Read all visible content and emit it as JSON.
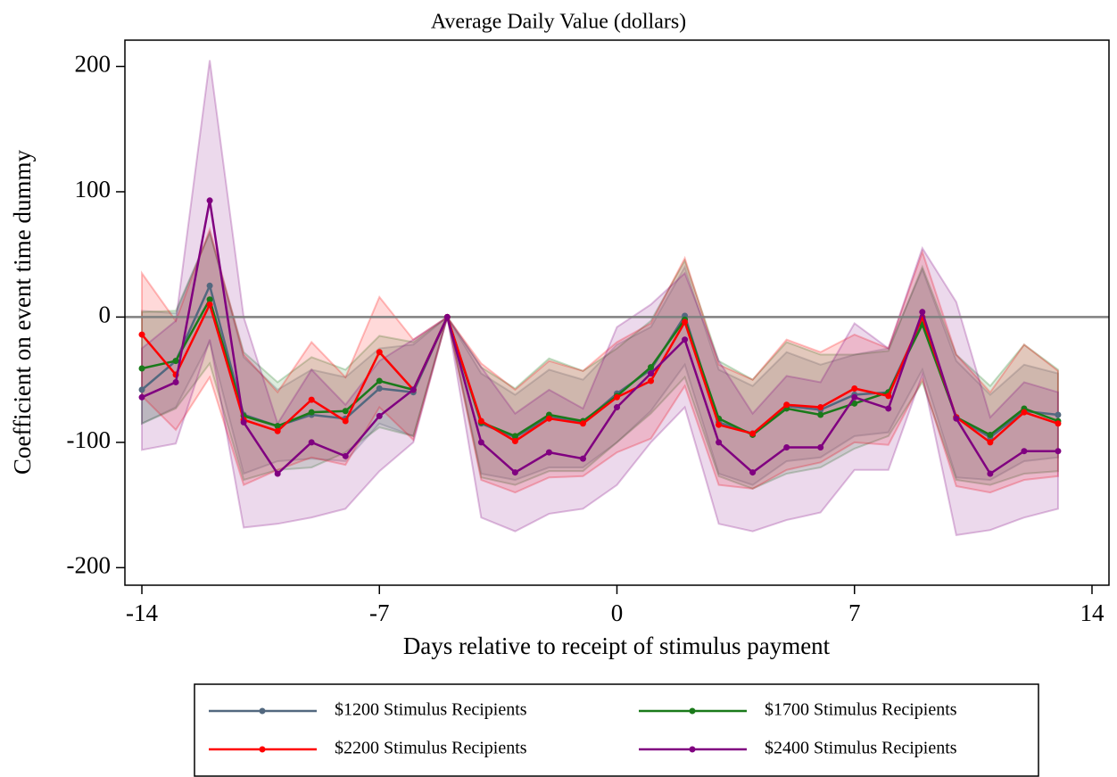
{
  "chart_data": {
    "type": "line",
    "title": "Average Daily Value (dollars)",
    "x_label": "Days relative to receipt of stimulus payment",
    "y_label": "Coefficient on event time dummy",
    "x": [
      -14,
      -13,
      -12,
      -11,
      -10,
      -9,
      -8,
      -7,
      -6,
      -5,
      -4,
      -3,
      -2,
      -1,
      0,
      1,
      2,
      3,
      4,
      5,
      6,
      7,
      8,
      9,
      10,
      11,
      12,
      13
    ],
    "xlim": [
      -14.5,
      14.5
    ],
    "xticks": [
      -14,
      -7,
      0,
      7,
      14
    ],
    "ylim": [
      -214,
      221
    ],
    "yticks": [
      -200,
      -100,
      0,
      100,
      200
    ],
    "hline": 0,
    "series": [
      {
        "name": "$1200 Stimulus Recipients",
        "color": "#52687f",
        "values": [
          -58,
          -35,
          25,
          -78,
          -87,
          -78,
          -81,
          -57,
          -60,
          0,
          -85,
          -96,
          -80,
          -84,
          -61,
          -42,
          1,
          -84,
          -93,
          -71,
          -74,
          -62,
          -60,
          -2,
          -80,
          -96,
          -75,
          -78
        ],
        "upper": [
          5,
          3,
          68,
          -32,
          -58,
          -42,
          -48,
          -25,
          -22,
          0,
          -45,
          -62,
          -42,
          -50,
          -22,
          -8,
          40,
          -42,
          -55,
          -28,
          -38,
          -30,
          -25,
          38,
          -35,
          -62,
          -38,
          -45
        ],
        "lower": [
          -85,
          -72,
          -20,
          -125,
          -115,
          -113,
          -115,
          -85,
          -95,
          0,
          -125,
          -130,
          -120,
          -120,
          -100,
          -75,
          -38,
          -125,
          -134,
          -115,
          -112,
          -95,
          -92,
          -42,
          -128,
          -130,
          -115,
          -112
        ]
      },
      {
        "name": "$1700 Stimulus Recipients",
        "color": "#1a7a1a",
        "values": [
          -41,
          -35,
          14,
          -79,
          -87,
          -76,
          -75,
          -51,
          -58,
          0,
          -84,
          -95,
          -78,
          -83,
          -63,
          -40,
          -2,
          -81,
          -94,
          -73,
          -78,
          -69,
          -60,
          -6,
          -80,
          -94,
          -73,
          -83
        ],
        "upper": [
          4,
          5,
          67,
          -28,
          -52,
          -32,
          -42,
          -15,
          -20,
          0,
          -40,
          -57,
          -33,
          -43,
          -25,
          -3,
          45,
          -35,
          -50,
          -20,
          -30,
          -30,
          -27,
          40,
          -30,
          -55,
          -22,
          -42
        ],
        "lower": [
          -85,
          -73,
          -37,
          -130,
          -122,
          -120,
          -108,
          -88,
          -95,
          0,
          -128,
          -134,
          -123,
          -123,
          -100,
          -77,
          -48,
          -127,
          -137,
          -125,
          -120,
          -105,
          -95,
          -52,
          -130,
          -134,
          -125,
          -123
        ]
      },
      {
        "name": "$2200 Stimulus Recipients",
        "color": "#ff0000",
        "values": [
          -14,
          -46,
          10,
          -82,
          -91,
          -66,
          -83,
          -28,
          -58,
          0,
          -83,
          -99,
          -81,
          -85,
          -64,
          -51,
          -4,
          -86,
          -93,
          -70,
          -72,
          -57,
          -63,
          0,
          -80,
          -100,
          -76,
          -85
        ],
        "upper": [
          35,
          -3,
          70,
          -30,
          -60,
          -20,
          -48,
          16,
          -18,
          0,
          -37,
          -58,
          -35,
          -43,
          -20,
          -5,
          47,
          -38,
          -50,
          -18,
          -28,
          -14,
          -25,
          52,
          -30,
          -60,
          -22,
          -43
        ],
        "lower": [
          -63,
          -90,
          -48,
          -134,
          -122,
          -112,
          -118,
          -72,
          -98,
          0,
          -130,
          -140,
          -128,
          -127,
          -108,
          -97,
          -55,
          -134,
          -137,
          -122,
          -116,
          -100,
          -102,
          -50,
          -135,
          -140,
          -130,
          -127
        ]
      },
      {
        "name": "$2400 Stimulus Recipients",
        "color": "#800080",
        "values": [
          -64,
          -52,
          93,
          -84,
          -125,
          -100,
          -111,
          -79,
          -58,
          0,
          -100,
          -124,
          -108,
          -113,
          -72,
          -45,
          -18,
          -100,
          -124,
          -104,
          -104,
          -64,
          -73,
          4,
          -81,
          -125,
          -107,
          -107
        ],
        "upper": [
          -25,
          -3,
          205,
          0,
          -85,
          -42,
          -70,
          -35,
          -18,
          0,
          -40,
          -77,
          -58,
          -73,
          -8,
          10,
          35,
          -35,
          -77,
          -47,
          -52,
          -5,
          -25,
          55,
          12,
          -80,
          -52,
          -60
        ],
        "lower": [
          -106,
          -101,
          -18,
          -168,
          -165,
          -160,
          -153,
          -123,
          -100,
          0,
          -160,
          -171,
          -157,
          -153,
          -134,
          -100,
          -72,
          -165,
          -171,
          -162,
          -156,
          -122,
          -122,
          -46,
          -174,
          -170,
          -160,
          -153
        ]
      }
    ]
  }
}
